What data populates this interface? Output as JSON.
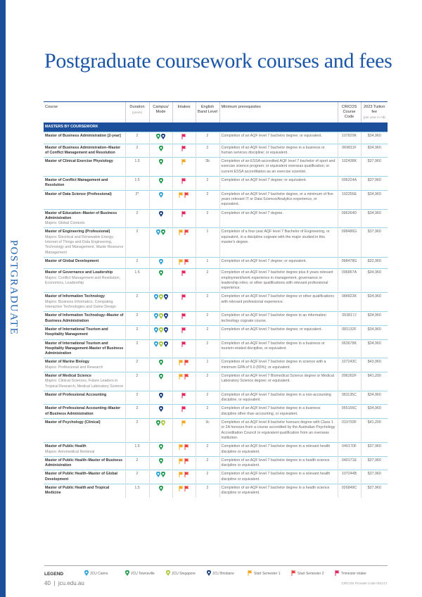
{
  "side_label": "POSTGRADUATE",
  "title": "Postgraduate coursework courses and fees",
  "headers": {
    "course": "Course",
    "duration": "Duration",
    "duration_sub": "(years)",
    "campus": "Campus/ Mode",
    "intakes": "Intakes",
    "english": "English Band Level",
    "prereq": "Minimum prerequisites",
    "cricos": "CRICOS Course Code",
    "fee": "2023 Tuition fee",
    "fee_sub": "(per year in A$)"
  },
  "section": "MASTERS BY COURSEWORK",
  "colors": {
    "cairns": "#2a9fd8",
    "townsville": "#1a9a4a",
    "singapore": "#a9c83c",
    "brisbane": "#123a7a",
    "s1": "#f3a51f",
    "s2": "#e8403c",
    "tri": "#e0245e"
  },
  "rows": [
    {
      "course": "Master of Business Administration [2-year]",
      "majors": "",
      "duration": "2",
      "campus": [
        "townsville",
        "brisbane"
      ],
      "intakes": [
        "tri"
      ],
      "english": "2",
      "prereq": "Completion of an AQF level 7 bachelro degree; or equivalent.",
      "cricos": "107829K",
      "fee": "$34,960"
    },
    {
      "course": "Master of Business Administration–Master of Conflict Management and Resolution",
      "majors": "",
      "duration": "2",
      "campus": [
        "townsville"
      ],
      "intakes": [
        "tri"
      ],
      "english": "2",
      "prereq": "Completion of an AQF level 7 bachelor degree in a business or human services discipline; or equivalent.",
      "cricos": "069811F",
      "fee": "$34,960"
    },
    {
      "course": "Master of Clinical Exercise Physiology",
      "majors": "",
      "duration": "1.5",
      "campus": [
        "townsville"
      ],
      "intakes": [
        "s1"
      ],
      "english": "3b",
      "prereq": "Completion of an ESSA-accredited AQF level 7 bachelor of sport and exercise science program; or equivalent overseas qualification; or current ESSA accreditation as an exercise scientist.",
      "cricos": "102438K",
      "fee": "$37,960"
    },
    {
      "course": "Master of Conflict Management and Resolution",
      "majors": "",
      "duration": "1.5",
      "campus": [
        "townsville"
      ],
      "intakes": [
        "tri"
      ],
      "english": "2",
      "prereq": "Completion of an AQF level 7 degree; or equivalent.",
      "cricos": "096224A",
      "fee": "$37,960"
    },
    {
      "course": "Master of Data Science (Professional)",
      "majors": "",
      "duration": "2*",
      "campus": [
        "cairns"
      ],
      "intakes": [
        "s1",
        "s2"
      ],
      "english": "2",
      "prereq": "Completion of an AQF level 7 bachelor degree, or a minimum of five years relevant IT or Data Science/Analytics experience, or equivalent.",
      "cricos": "102256E",
      "fee": "$34,960"
    },
    {
      "course": "Master of Education–Master of Business Administration",
      "majors": "Majors: Global Contexts",
      "duration": "2",
      "campus": [
        "brisbane"
      ],
      "intakes": [
        "tri"
      ],
      "english": "2",
      "prereq": "Completion of an AQF level 7 degree.",
      "cricos": "096264D",
      "fee": "$34,960"
    },
    {
      "course": "Master of Engineering (Professional)",
      "majors": "Majors: Electrical and Renewable Energy, Internet of Things and Data Engineering, Technology and Management, Waste Resource Management",
      "duration": "2",
      "campus": [
        "cairns",
        "townsville"
      ],
      "intakes": [
        "s1",
        "s2"
      ],
      "english": "1",
      "prereq": "Completion of a four-year AQF level 7 Bachelor of Engineering, or equivalent, in a discipline cognate with the major studied in this master's degree.",
      "cricos": "098486G",
      "fee": "$37,960"
    },
    {
      "course": "Master of Global Development",
      "majors": "",
      "duration": "2",
      "campus": [
        "cairns"
      ],
      "intakes": [
        "s1",
        "s2"
      ],
      "english": "1",
      "prereq": "Completion of an AQF level 7 degree; or equivalent.",
      "cricos": "098478G",
      "fee": "$32,960"
    },
    {
      "course": "Master of Governance and Leadership",
      "majors": "Majors: Conflict Management and Resolution, Economics, Leadership",
      "duration": "1.5",
      "campus": [
        "townsville"
      ],
      "intakes": [
        "tri"
      ],
      "english": "2",
      "prereq": "Completion of an AQF level 7 bachelor degree plus 4 years relevant employment/work experience in management, governance or leadership roles; or other qualifications with relevant professional experience.",
      "cricos": "096857A",
      "fee": "$34,960"
    },
    {
      "course": "Master of Information Technology",
      "majors": "Majors: Business Informatics, Computing, Interactive Technologies and Game Design",
      "duration": "2",
      "campus": [
        "cairns",
        "singapore",
        "brisbane"
      ],
      "intakes": [
        "tri"
      ],
      "english": "2",
      "prereq": "Completion of an AQF level 7 bachelor degree or other qualifications with relevant professional experience.",
      "cricos": "084823K",
      "fee": "$34,960"
    },
    {
      "course": "Master of Information Technology–Master of Business Administration",
      "majors": "",
      "duration": "2",
      "campus": [
        "cairns",
        "singapore",
        "brisbane"
      ],
      "intakes": [
        "tri"
      ],
      "english": "2",
      "prereq": "Completion of an AQF level 7 bachelor degree in an information technology cognate course.",
      "cricos": "053817J",
      "fee": "$34,960"
    },
    {
      "course": "Master of International Tourism and Hospitality Management",
      "majors": "",
      "duration": "2",
      "campus": [
        "cairns",
        "singapore",
        "brisbane"
      ],
      "intakes": [
        "tri"
      ],
      "english": "2",
      "prereq": "Completion of an AQF level 7 bachelor degree; or equivalent.",
      "cricos": "081132F",
      "fee": "$34,960"
    },
    {
      "course": "Master of International Tourism and Hospitality Management-Master of Business Administration",
      "majors": "",
      "duration": "2",
      "campus": [
        "cairns",
        "singapore",
        "brisbane"
      ],
      "intakes": [
        "tri"
      ],
      "english": "2",
      "prereq": "Completion of an AQF level 7 bachelor degree in a business or tourism-related discipline, or equivalent.",
      "cricos": "063678K",
      "fee": "$34,960"
    },
    {
      "course": "Master of Marine Biology",
      "majors": "Majors: Professional and Research",
      "duration": "2",
      "campus": [
        "townsville"
      ],
      "intakes": [
        "s1",
        "s2"
      ],
      "english": "1",
      "prereq": "Completion of an AQF level 7 bachelor degree in science with a minimum GPA of 5.0 (65%); or equivalent.",
      "cricos": "107243C",
      "fee": "$43,960"
    },
    {
      "course": "Master of Medical Science",
      "majors": "Majors: Clinical Sciences, Future Leaders in Tropical Research, Medical Laboratory Science",
      "duration": "2",
      "campus": [
        "townsville"
      ],
      "intakes": [
        "s1",
        "s2"
      ],
      "english": "2",
      "prereq": "Completion of an AQF level 7 Biomedical Science degree or Medical Laboratory Science degree; or equivalent.",
      "cricos": "096262F",
      "fee": "$41,200"
    },
    {
      "course": "Master of Professional Accounting",
      "majors": "",
      "duration": "2",
      "campus": [
        "brisbane"
      ],
      "intakes": [
        "tri"
      ],
      "english": "2",
      "prereq": "Completion of an AQF level 7 bachelor degree in a non-accounting discipline, or equivalent.",
      "cricos": "081135C",
      "fee": "$34,960"
    },
    {
      "course": "Master of Professional Accounting–Master of Business Administration",
      "majors": "",
      "duration": "2",
      "campus": [
        "brisbane"
      ],
      "intakes": [
        "tri"
      ],
      "english": "2",
      "prereq": "Completion of an AQF level 7 bachelor degree in a business discipline other than accounting, or equivalent.",
      "cricos": "055156C",
      "fee": "$34,960"
    },
    {
      "course": "Master of Psychology (Clinical)",
      "majors": "",
      "duration": "2",
      "campus": [
        "townsville",
        "singapore"
      ],
      "intakes": [
        "s1"
      ],
      "english": "3c",
      "prereq": "Completion of an AQF level 8 bachelor honours degree with Class 1 or 2A honours from a course accredited by the Australian Psychology Accreditation Council or equivalent qualification from an overseas institution.",
      "cricos": "019793F",
      "fee": "$41,200"
    },
    {
      "course": "Master of Public Health",
      "majors": "Majors: Aeromedical Retrieval",
      "duration": "1.5",
      "campus": [
        "townsville"
      ],
      "intakes": [
        "s1",
        "s2"
      ],
      "english": "2",
      "prereq": "Completion of an AQF level 7 bachelor degree in a relevant health discipline or equivalent.",
      "cricos": "040170F",
      "fee": "$37,960"
    },
    {
      "course": "Master of Public Health–Master of Business Administration",
      "majors": "",
      "duration": "2",
      "campus": [
        "townsville"
      ],
      "intakes": [
        "s1",
        "s2"
      ],
      "english": "2",
      "prereq": "Completion of an AQF level 7 bachelor degree in a health science discipline or equivalent.",
      "cricos": "040171E",
      "fee": "$37,960"
    },
    {
      "course": "Master of Public Health–Master of Global Development",
      "majors": "",
      "duration": "2",
      "campus": [
        "cairns",
        "townsville"
      ],
      "intakes": [
        "s1",
        "s2"
      ],
      "english": "2",
      "prereq": "Completion of an AQF level 7 bachelor degree in a relevant health discipline or equivalent.",
      "cricos": "107244B",
      "fee": "$37,960"
    },
    {
      "course": "Master of Public Health and Tropical Medicine",
      "majors": "",
      "duration": "1.5",
      "campus": [
        "townsville"
      ],
      "intakes": [
        "s1",
        "s2"
      ],
      "english": "2",
      "prereq": "Completion of an AQF level 7 bachelor degree in a health science discipline or equivalent.",
      "cricos": "026849C",
      "fee": "$37,960"
    }
  ],
  "legend": {
    "title": "LEGEND",
    "items": [
      {
        "key": "cairns",
        "type": "pin",
        "label": "JCU Cairns"
      },
      {
        "key": "townsville",
        "type": "pin",
        "label": "JCU Townsville"
      },
      {
        "key": "singapore",
        "type": "pin",
        "label": "JCU Singapore"
      },
      {
        "key": "brisbane",
        "type": "pin",
        "label": "JCU Brisbane"
      },
      {
        "key": "s1",
        "type": "flag",
        "label": "Start Semester 1"
      },
      {
        "key": "s2",
        "type": "flag",
        "label": "Start Semester 2"
      },
      {
        "key": "tri",
        "type": "flag",
        "label": "Trimester intake"
      }
    ]
  },
  "footer": {
    "page": "40",
    "site": "jcu.edu.au",
    "provider": "CRICOS Provider Code 00117J"
  }
}
